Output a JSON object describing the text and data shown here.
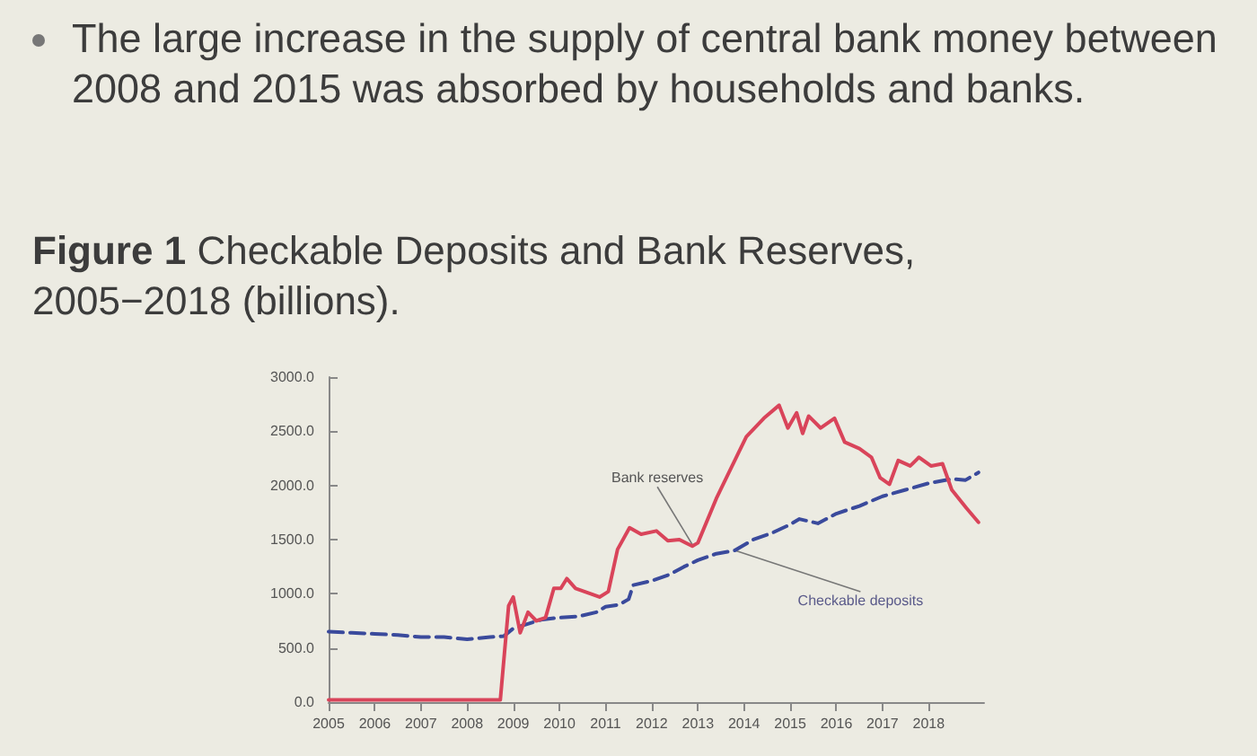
{
  "chart_data": {
    "type": "line",
    "title": "Figure 1 Checkable Deposits and Bank Reserves, 2005−2018 (billions).",
    "annotations": [
      "The large increase in the supply of central bank money between 2008 and 2015 was absorbed by households and banks.",
      {
        "text": "Bank reserves",
        "x": 2012.9,
        "y": 1440
      },
      {
        "text": "Checkable deposits",
        "x": 2013.8,
        "y": 1400
      }
    ],
    "series": [
      {
        "color": "#3a4a9c",
        "line_style": "dashed",
        "x": [
          2005.0,
          2005.5,
          2006.0,
          2006.5,
          2007.0,
          2007.5,
          2008.0,
          2008.5,
          2008.8,
          2009.0,
          2009.3,
          2009.6,
          2010.0,
          2010.4,
          2010.8,
          2011.0,
          2011.3,
          2011.5,
          2011.6,
          2012.0,
          2012.4,
          2012.7,
          2013.0,
          2013.4,
          2013.8,
          2014.2,
          2014.6,
          2015.0,
          2015.2,
          2015.6,
          2016.0,
          2016.5,
          2017.0,
          2017.5,
          2018.0,
          2018.5,
          2018.8,
          2019.08
        ],
        "values": [
          650,
          640,
          630,
          620,
          600,
          600,
          580,
          600,
          610,
          680,
          720,
          760,
          780,
          790,
          830,
          880,
          900,
          950,
          1080,
          1120,
          1180,
          1250,
          1310,
          1370,
          1400,
          1500,
          1560,
          1640,
          1690,
          1650,
          1740,
          1810,
          1900,
          1960,
          2020,
          2060,
          2050,
          2120
        ]
      },
      {
        "color": "#d9445a",
        "line_style": "solid",
        "x": [
          2005.0,
          2008.72,
          2008.9,
          2009.0,
          2009.15,
          2009.32,
          2009.5,
          2009.7,
          2009.88,
          2010.03,
          2010.16,
          2010.35,
          2010.68,
          2010.87,
          2011.06,
          2011.26,
          2011.52,
          2011.77,
          2012.1,
          2012.35,
          2012.6,
          2012.88,
          2013.0,
          2013.4,
          2013.65,
          2014.05,
          2014.43,
          2014.76,
          2014.95,
          2015.14,
          2015.27,
          2015.4,
          2015.66,
          2015.96,
          2016.18,
          2016.5,
          2016.76,
          2016.95,
          2017.15,
          2017.34,
          2017.6,
          2017.79,
          2018.05,
          2018.3,
          2018.5,
          2018.82,
          2019.08
        ],
        "values": [
          20,
          20,
          890,
          970,
          640,
          830,
          750,
          780,
          1050,
          1050,
          1140,
          1050,
          1000,
          970,
          1020,
          1410,
          1610,
          1550,
          1580,
          1490,
          1500,
          1440,
          1470,
          1880,
          2100,
          2450,
          2620,
          2740,
          2530,
          2670,
          2480,
          2640,
          2530,
          2620,
          2400,
          2340,
          2260,
          2070,
          2010,
          2230,
          2180,
          2260,
          2180,
          2200,
          1960,
          1790,
          1660
        ]
      }
    ],
    "xlim": [
      2005,
      2019.2
    ],
    "xticks": [
      2005,
      2006,
      2007,
      2008,
      2009,
      2010,
      2011,
      2012,
      2013,
      2014,
      2015,
      2016,
      2017,
      2018
    ],
    "ylim": [
      0,
      3000
    ],
    "yticks": [
      {
        "value": 0,
        "label": "0.0"
      },
      {
        "value": 500,
        "label": "500.0"
      },
      {
        "value": 1000,
        "label": "1000.0"
      },
      {
        "value": 1500,
        "label": "1500.0"
      },
      {
        "value": 2000,
        "label": "2000.0"
      },
      {
        "value": 2500,
        "label": "2500.0"
      },
      {
        "value": 3000,
        "label": "3000.0"
      }
    ],
    "grid": false,
    "marker": "none"
  }
}
